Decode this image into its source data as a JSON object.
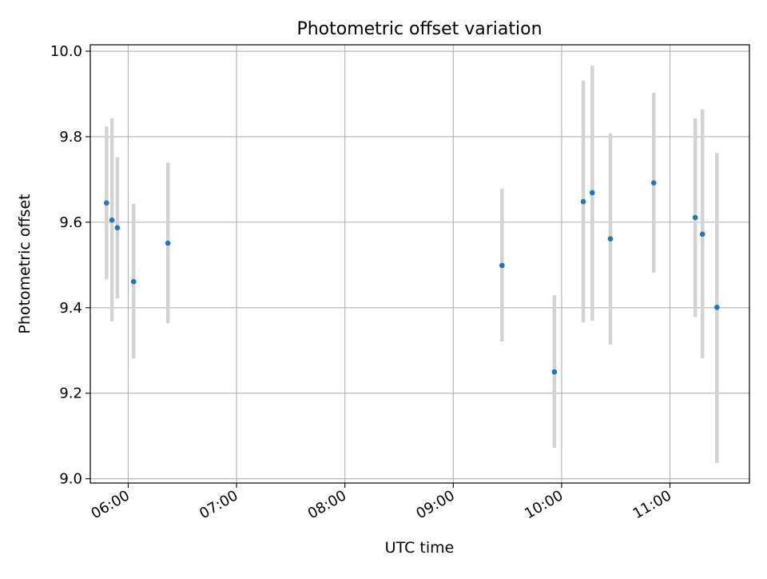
{
  "chart_data": {
    "type": "scatter",
    "title": "Photometric offset variation",
    "xlabel": "UTC time",
    "ylabel": "Photometric offset",
    "x_ticks": [
      "06:00",
      "07:00",
      "08:00",
      "09:00",
      "10:00",
      "11:00"
    ],
    "y_ticks": [
      "9.0",
      "9.2",
      "9.4",
      "9.6",
      "9.8",
      "10.0"
    ],
    "xlim": [
      "05:39",
      "11:44"
    ],
    "ylim": [
      8.99,
      10.015
    ],
    "grid": true,
    "series": [
      {
        "marker_color": "#1f77b4",
        "errorbar_color": "#d3d3d3",
        "points": [
          {
            "x": "05:48",
            "y": 9.645,
            "ylow": 9.466,
            "yhigh": 9.824
          },
          {
            "x": "05:51",
            "y": 9.605,
            "ylow": 9.368,
            "yhigh": 9.843
          },
          {
            "x": "05:54",
            "y": 9.587,
            "ylow": 9.422,
            "yhigh": 9.752
          },
          {
            "x": "06:03",
            "y": 9.461,
            "ylow": 9.281,
            "yhigh": 9.643
          },
          {
            "x": "06:22",
            "y": 9.551,
            "ylow": 9.364,
            "yhigh": 9.739
          },
          {
            "x": "09:27",
            "y": 9.499,
            "ylow": 9.321,
            "yhigh": 9.678
          },
          {
            "x": "09:56",
            "y": 9.25,
            "ylow": 9.072,
            "yhigh": 9.429
          },
          {
            "x": "10:12",
            "y": 9.648,
            "ylow": 9.366,
            "yhigh": 9.931
          },
          {
            "x": "10:17",
            "y": 9.669,
            "ylow": 9.37,
            "yhigh": 9.966
          },
          {
            "x": "10:27",
            "y": 9.561,
            "ylow": 9.314,
            "yhigh": 9.808
          },
          {
            "x": "10:51",
            "y": 9.692,
            "ylow": 9.482,
            "yhigh": 9.903
          },
          {
            "x": "11:14",
            "y": 9.611,
            "ylow": 9.378,
            "yhigh": 9.843
          },
          {
            "x": "11:18",
            "y": 9.572,
            "ylow": 9.282,
            "yhigh": 9.864
          },
          {
            "x": "11:26",
            "y": 9.401,
            "ylow": 9.037,
            "yhigh": 9.762
          }
        ]
      }
    ]
  }
}
